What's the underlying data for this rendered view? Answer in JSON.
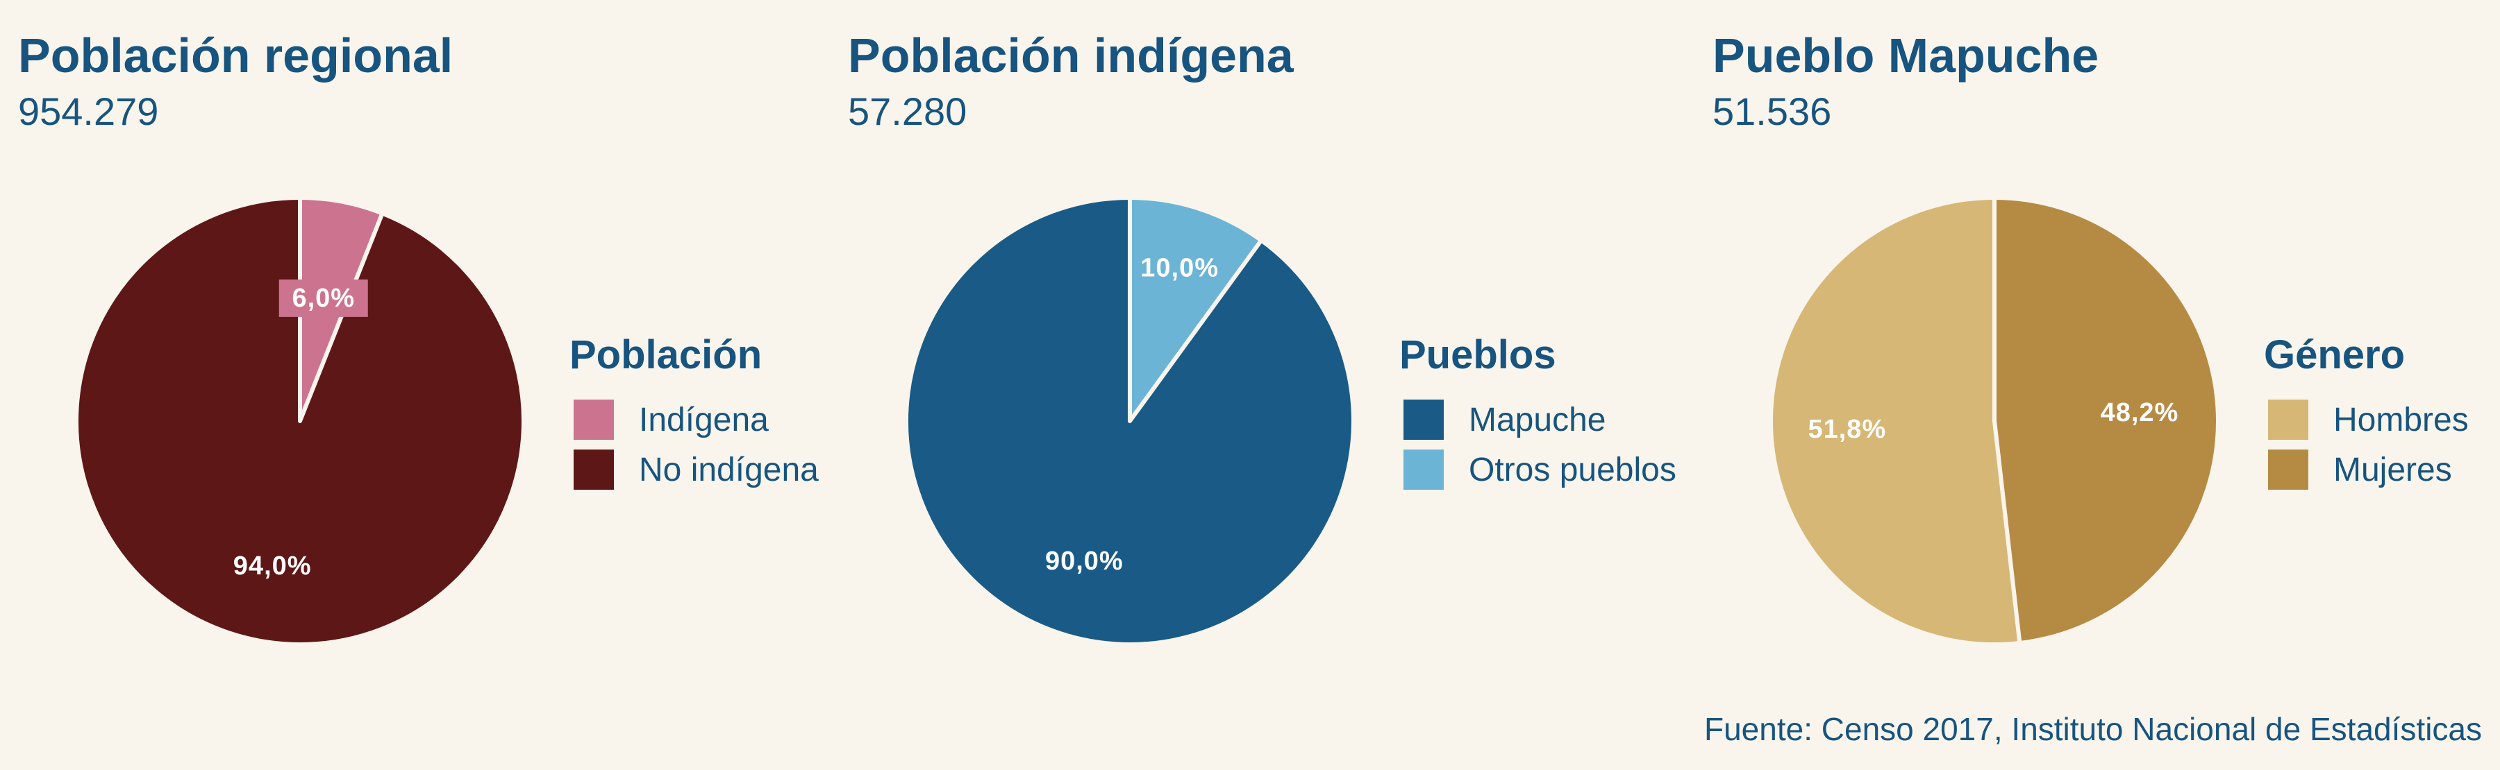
{
  "chart_data": [
    {
      "type": "pie",
      "title": "Población regional",
      "total": "954.279",
      "legend_title": "Población",
      "colors": {
        "background": "#f9f5ec",
        "text": "#17547f"
      },
      "slices": [
        {
          "label": "Indígena",
          "value": 6.0,
          "display": "6,0%",
          "color": "#cc7390",
          "label_bg": "#cc7390"
        },
        {
          "label": "No indígena",
          "value": 94.0,
          "display": "94,0%",
          "color": "#5e1717",
          "label_bg": ""
        }
      ]
    },
    {
      "type": "pie",
      "title": "Población indígena",
      "total": "57.280",
      "legend_title": "Pueblos",
      "slices": [
        {
          "label": "Mapuche",
          "value": 90.0,
          "display": "90,0%",
          "color": "#195b86",
          "label_bg": ""
        },
        {
          "label": "Otros pueblos",
          "value": 10.0,
          "display": "10,0%",
          "color": "#6bb4d6",
          "label_bg": "#6bb4d6"
        }
      ]
    },
    {
      "type": "pie",
      "title": "Pueblo Mapuche",
      "total": "51.536",
      "legend_title": "Género",
      "slices": [
        {
          "label": "Hombres",
          "value": 51.8,
          "display": "51,8%",
          "color": "#d6b775",
          "label_bg": ""
        },
        {
          "label": "Mujeres",
          "value": 48.2,
          "display": "48,2%",
          "color": "#b58b44",
          "label_bg": ""
        }
      ]
    }
  ],
  "source": "Fuente: Censo 2017, Instituto Nacional de Estadísticas"
}
